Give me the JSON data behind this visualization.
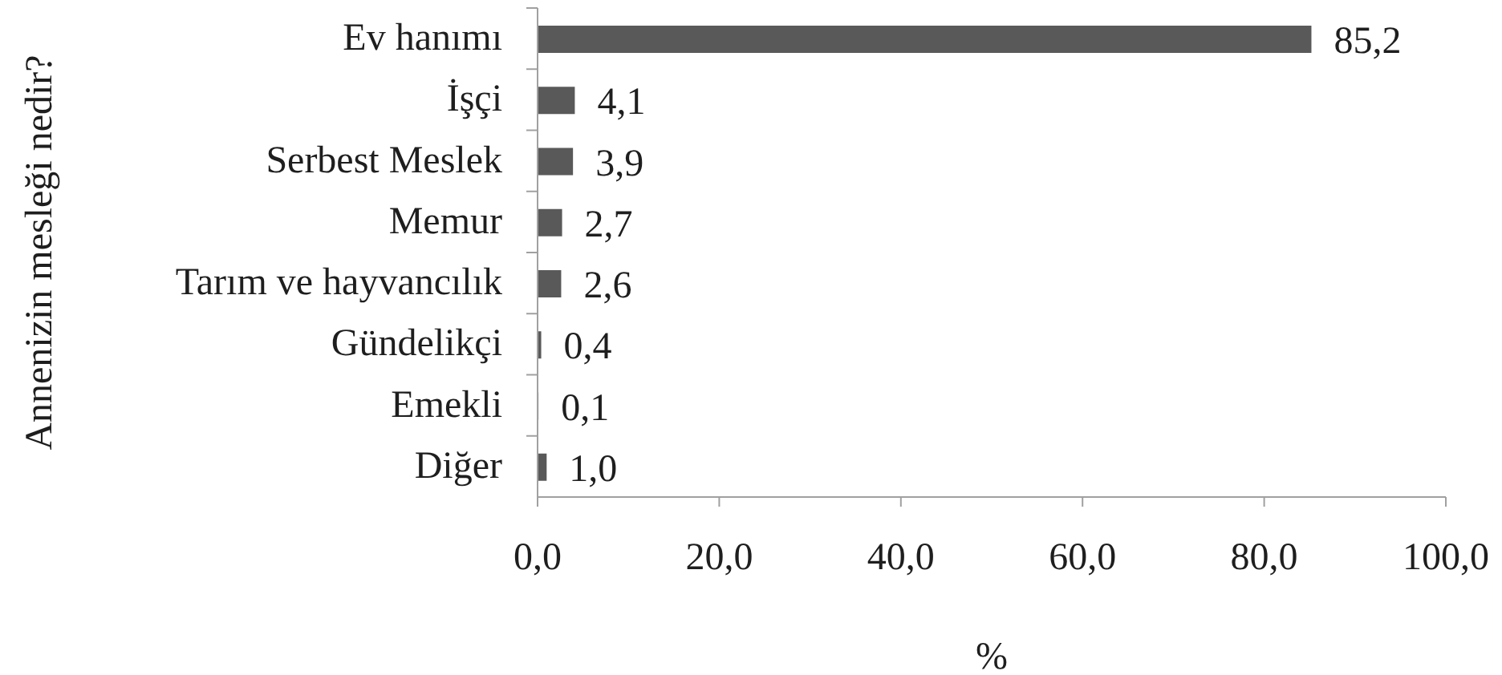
{
  "chart_data": {
    "type": "bar",
    "orientation": "horizontal",
    "ylabel": "Annenizin mesleği nedir?",
    "xlabel": "%",
    "categories": [
      "Ev hanımı",
      "İşçi",
      "Serbest Meslek",
      "Memur",
      "Tarım ve hayvancılık",
      "Gündelikçi",
      "Emekli",
      "Diğer"
    ],
    "values": [
      85.2,
      4.1,
      3.9,
      2.7,
      2.6,
      0.4,
      0.1,
      1.0
    ],
    "color": "#595959",
    "value_labels": [
      "85,2",
      "4,1",
      "3,9",
      "2,7",
      "2,6",
      "0,4",
      "0,1",
      "1,0"
    ],
    "xlim": [
      0,
      100
    ],
    "xticks": [
      {
        "value": 0,
        "label": "0,0"
      },
      {
        "value": 20,
        "label": "20,0"
      },
      {
        "value": 40,
        "label": "40,0"
      },
      {
        "value": 60,
        "label": "60,0"
      },
      {
        "value": 80,
        "label": "80,0"
      },
      {
        "value": 100,
        "label": "100,0"
      }
    ]
  }
}
